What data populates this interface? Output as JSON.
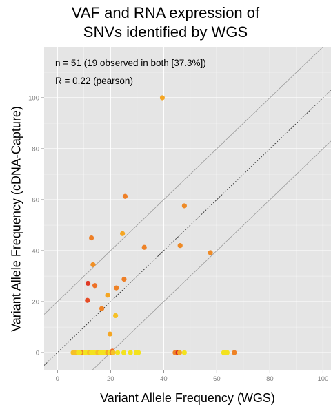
{
  "chart_data": {
    "type": "scatter",
    "title_lines": [
      "VAF and RNA expression of",
      "SNVs identified by WGS"
    ],
    "xlabel": "Variant Allele Frequency (WGS)",
    "ylabel": "Variant Allele Frequency (cDNA-Capture)",
    "xlim": [
      -5,
      103
    ],
    "ylim": [
      -7,
      120
    ],
    "xticks": [
      0,
      20,
      40,
      60,
      80,
      100
    ],
    "yticks": [
      0,
      20,
      40,
      60,
      80,
      100
    ],
    "grid": true,
    "reference_lines": [
      {
        "style": "dotted",
        "slope": 1,
        "intercept": 0
      },
      {
        "style": "solid",
        "slope": 1,
        "intercept": 20
      },
      {
        "style": "solid",
        "slope": 1,
        "intercept": -20
      }
    ],
    "annotations": [
      "n = 51 (19 observed in both [37.3%])",
      "R = 0.22 (pearson)"
    ],
    "colors": {
      "panel": "#e5e5e5",
      "grid": "#ffffff",
      "tick_text": "#7f7f7f"
    },
    "points": [
      {
        "x": 39.5,
        "y": 100,
        "color": "#f5a623"
      },
      {
        "x": 25.5,
        "y": 61.3,
        "color": "#ee7f26"
      },
      {
        "x": 47.8,
        "y": 57.6,
        "color": "#ee8a26"
      },
      {
        "x": 24.5,
        "y": 46.7,
        "color": "#f5a623"
      },
      {
        "x": 12.8,
        "y": 45.0,
        "color": "#ee7f26"
      },
      {
        "x": 32.7,
        "y": 41.3,
        "color": "#ee8226"
      },
      {
        "x": 46.2,
        "y": 42.0,
        "color": "#ee8a26"
      },
      {
        "x": 57.6,
        "y": 39.2,
        "color": "#ee8a26"
      },
      {
        "x": 13.4,
        "y": 34.5,
        "color": "#f19026"
      },
      {
        "x": 25.1,
        "y": 28.8,
        "color": "#ee7f26"
      },
      {
        "x": 11.5,
        "y": 27.2,
        "color": "#e03a26"
      },
      {
        "x": 14.1,
        "y": 26.3,
        "color": "#ee7026"
      },
      {
        "x": 22.2,
        "y": 25.4,
        "color": "#ee8226"
      },
      {
        "x": 18.9,
        "y": 22.5,
        "color": "#f5a623"
      },
      {
        "x": 11.3,
        "y": 20.5,
        "color": "#e64c26"
      },
      {
        "x": 16.7,
        "y": 17.3,
        "color": "#ee8226"
      },
      {
        "x": 21.9,
        "y": 14.5,
        "color": "#f6c026"
      },
      {
        "x": 19.8,
        "y": 7.3,
        "color": "#f5a623"
      },
      {
        "x": 20.7,
        "y": 0.6,
        "color": "#ee6a26"
      },
      {
        "x": 5.9,
        "y": 0,
        "color": "#f6c026"
      },
      {
        "x": 6.6,
        "y": 0,
        "color": "#f6c026"
      },
      {
        "x": 7.9,
        "y": 0,
        "color": "#f3e21e"
      },
      {
        "x": 9.1,
        "y": 0,
        "color": "#ee8226"
      },
      {
        "x": 10.4,
        "y": 0,
        "color": "#f3e21e"
      },
      {
        "x": 11.3,
        "y": 0,
        "color": "#f3e21e"
      },
      {
        "x": 12.0,
        "y": 0,
        "color": "#f6c026"
      },
      {
        "x": 12.8,
        "y": 0,
        "color": "#f3e21e"
      },
      {
        "x": 13.6,
        "y": 0,
        "color": "#f3e21e"
      },
      {
        "x": 14.4,
        "y": 0,
        "color": "#f3e21e"
      },
      {
        "x": 15.2,
        "y": 0,
        "color": "#f6c026"
      },
      {
        "x": 16.1,
        "y": 0,
        "color": "#f3e21e"
      },
      {
        "x": 17.0,
        "y": 0,
        "color": "#f3e21e"
      },
      {
        "x": 17.9,
        "y": 0,
        "color": "#f3e21e"
      },
      {
        "x": 18.9,
        "y": 0,
        "color": "#f5a623"
      },
      {
        "x": 19.7,
        "y": 0,
        "color": "#f3e21e"
      },
      {
        "x": 20.5,
        "y": 0,
        "color": "#ee8226"
      },
      {
        "x": 21.0,
        "y": 0,
        "color": "#f6c026"
      },
      {
        "x": 22.7,
        "y": 0,
        "color": "#f3e21e"
      },
      {
        "x": 25.0,
        "y": 0,
        "color": "#f3e21e"
      },
      {
        "x": 27.5,
        "y": 0,
        "color": "#f3e21e"
      },
      {
        "x": 29.6,
        "y": 0,
        "color": "#f3e21e"
      },
      {
        "x": 44.3,
        "y": 0,
        "color": "#ee8226"
      },
      {
        "x": 45.4,
        "y": 0,
        "color": "#d62626"
      },
      {
        "x": 46.0,
        "y": 0,
        "color": "#f5a623"
      },
      {
        "x": 47.8,
        "y": 0,
        "color": "#f3e21e"
      },
      {
        "x": 62.6,
        "y": 0,
        "color": "#f3e21e"
      },
      {
        "x": 63.3,
        "y": 0,
        "color": "#f3e21e"
      },
      {
        "x": 63.9,
        "y": 0,
        "color": "#f3e21e"
      },
      {
        "x": 66.6,
        "y": 0,
        "color": "#ee8226"
      },
      {
        "x": 30.5,
        "y": 0,
        "color": "#f3e21e"
      },
      {
        "x": 8.4,
        "y": 0,
        "color": "#f3e21e"
      }
    ]
  }
}
